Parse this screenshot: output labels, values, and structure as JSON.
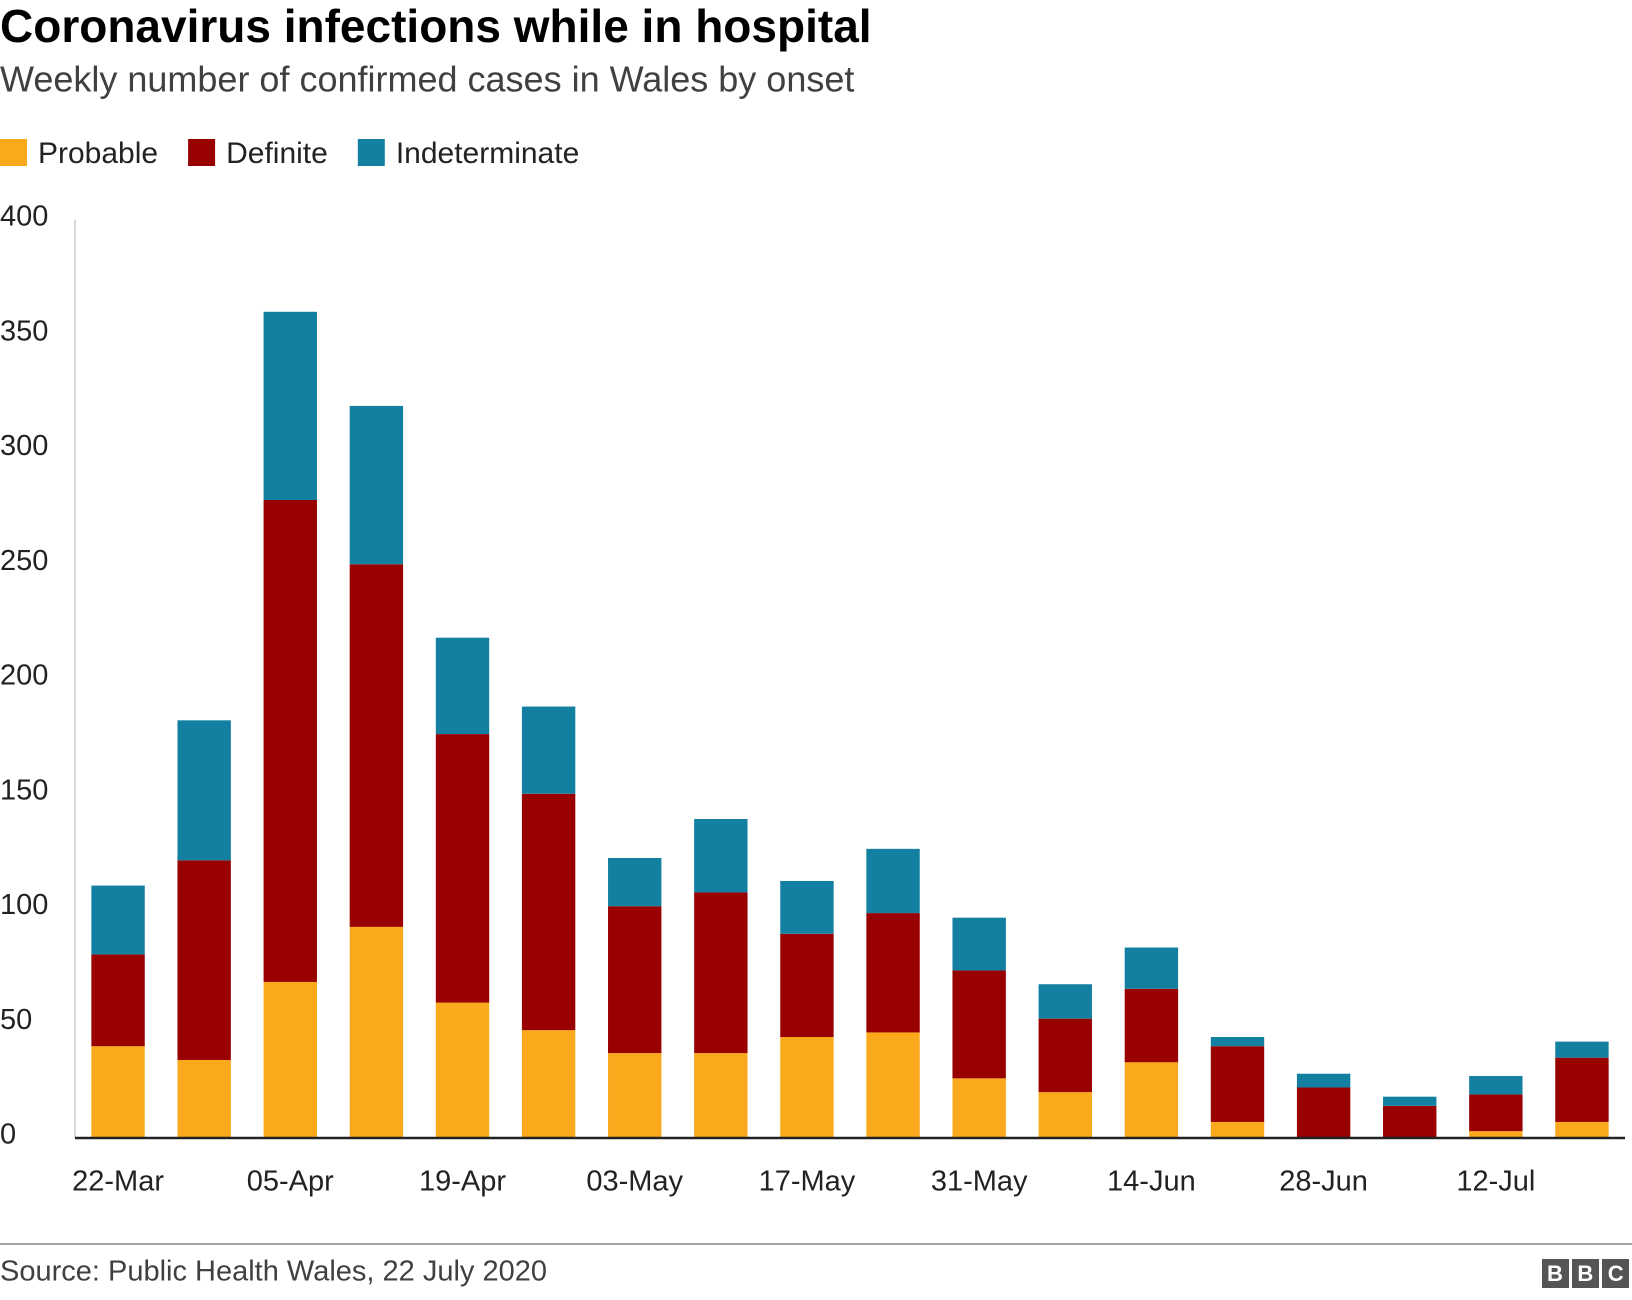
{
  "chart_data": {
    "type": "stacked_bar",
    "title": "Coronavirus infections while in hospital",
    "subtitle": "Weekly number of confirmed cases in Wales by onset",
    "source": "Source: Public Health Wales, 22 July 2020",
    "logo": "BBC",
    "categories": [
      "22-Mar",
      null,
      "05-Apr",
      null,
      "19-Apr",
      null,
      "03-May",
      null,
      "17-May",
      null,
      "31-May",
      null,
      "14-Jun",
      null,
      "28-Jun",
      null,
      "12-Jul",
      null
    ],
    "series": [
      {
        "name": "Probable",
        "color": "#f9a91b",
        "values": [
          40,
          34,
          68,
          92,
          59,
          47,
          37,
          37,
          44,
          46,
          26,
          20,
          33,
          7,
          0,
          0,
          3,
          7
        ]
      },
      {
        "name": "Definite",
        "color": "#990000",
        "values": [
          40,
          87,
          210,
          158,
          117,
          103,
          64,
          70,
          45,
          52,
          47,
          32,
          32,
          33,
          22,
          14,
          16,
          28
        ]
      },
      {
        "name": "Indeterminate",
        "color": "#1380a1",
        "values": [
          30,
          61,
          82,
          69,
          42,
          38,
          21,
          32,
          23,
          28,
          23,
          15,
          18,
          4,
          6,
          4,
          8,
          7
        ]
      }
    ],
    "ylim": [
      0,
      400
    ],
    "yticks": [
      0,
      50,
      100,
      150,
      200,
      250,
      300,
      350,
      400
    ],
    "grid": false
  }
}
